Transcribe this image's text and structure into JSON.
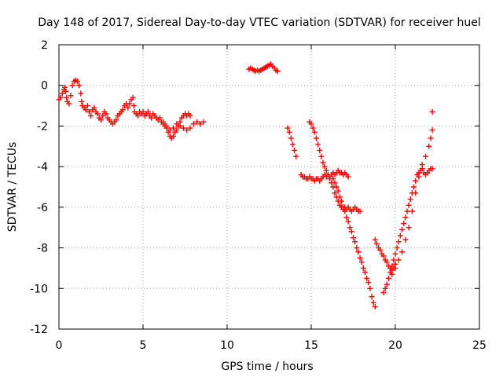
{
  "chart_data": {
    "type": "scatter",
    "title": "Day 148 of 2017, Sidereal Day-to-day VTEC variation (SDTVAR) for receiver huel",
    "xlabel": "GPS time / hours",
    "ylabel": "SDTVAR / TECUs",
    "xlim": [
      0,
      25
    ],
    "ylim": [
      -12,
      2
    ],
    "x_ticks": [
      0,
      5,
      10,
      15,
      20,
      25
    ],
    "x_tick_labels": [
      "0",
      "5",
      "10",
      "15",
      "20",
      "25"
    ],
    "y_ticks": [
      2,
      0,
      -2,
      -4,
      -6,
      -8,
      -10,
      -12
    ],
    "y_tick_labels": [
      "2",
      "0",
      "-2",
      "-4",
      "-6",
      "-8",
      "-10",
      "-12"
    ],
    "grid": true,
    "marker": "plus",
    "color": "#ff0000",
    "series": [
      {
        "values": [
          [
            0.0,
            -0.7
          ],
          [
            0.1,
            -0.6
          ],
          [
            0.2,
            -0.4
          ],
          [
            0.3,
            -0.2
          ],
          [
            0.35,
            -0.1
          ],
          [
            0.4,
            -0.3
          ],
          [
            0.45,
            -0.6
          ],
          [
            0.5,
            -0.8
          ],
          [
            0.6,
            -0.9
          ],
          [
            0.7,
            -0.5
          ],
          [
            0.8,
            0.0
          ],
          [
            0.9,
            0.2
          ],
          [
            1.0,
            0.25
          ],
          [
            1.1,
            0.2
          ],
          [
            1.2,
            0.0
          ],
          [
            1.3,
            -0.4
          ],
          [
            1.35,
            -0.8
          ],
          [
            1.4,
            -1.0
          ],
          [
            1.5,
            -1.1
          ],
          [
            1.6,
            -1.2
          ],
          [
            1.7,
            -1.0
          ],
          [
            1.8,
            -1.3
          ],
          [
            1.9,
            -1.5
          ],
          [
            2.0,
            -1.2
          ],
          [
            2.1,
            -1.1
          ],
          [
            2.2,
            -1.3
          ],
          [
            2.3,
            -1.4
          ],
          [
            2.4,
            -1.6
          ],
          [
            2.5,
            -1.7
          ],
          [
            2.6,
            -1.5
          ],
          [
            2.7,
            -1.3
          ],
          [
            2.8,
            -1.4
          ],
          [
            2.9,
            -1.6
          ],
          [
            3.0,
            -1.7
          ],
          [
            3.1,
            -1.8
          ],
          [
            3.2,
            -1.9
          ],
          [
            3.3,
            -1.8
          ],
          [
            3.4,
            -1.7
          ],
          [
            3.5,
            -1.5
          ],
          [
            3.6,
            -1.4
          ],
          [
            3.7,
            -1.3
          ],
          [
            3.8,
            -1.2
          ],
          [
            3.9,
            -1.0
          ],
          [
            4.0,
            -0.9
          ],
          [
            4.1,
            -1.1
          ],
          [
            4.2,
            -0.9
          ],
          [
            4.3,
            -0.7
          ],
          [
            4.4,
            -0.6
          ],
          [
            4.45,
            -1.0
          ],
          [
            4.5,
            -1.3
          ],
          [
            4.6,
            -1.4
          ],
          [
            4.7,
            -1.5
          ],
          [
            4.8,
            -1.3
          ],
          [
            4.9,
            -1.4
          ],
          [
            5.0,
            -1.3
          ],
          [
            5.1,
            -1.5
          ],
          [
            5.2,
            -1.4
          ],
          [
            5.3,
            -1.3
          ],
          [
            5.4,
            -1.5
          ],
          [
            5.5,
            -1.6
          ],
          [
            5.6,
            -1.4
          ],
          [
            5.7,
            -1.5
          ],
          [
            5.8,
            -1.6
          ],
          [
            5.9,
            -1.7
          ],
          [
            6.0,
            -1.6
          ],
          [
            6.1,
            -1.8
          ],
          [
            6.2,
            -1.9
          ],
          [
            6.3,
            -2.0
          ],
          [
            6.4,
            -2.1
          ],
          [
            6.5,
            -2.3
          ],
          [
            6.6,
            -2.5
          ],
          [
            6.7,
            -2.6
          ],
          [
            6.8,
            -2.5
          ],
          [
            6.9,
            -2.3
          ],
          [
            7.0,
            -2.2
          ],
          [
            7.1,
            -2.0
          ],
          [
            7.2,
            -1.8
          ],
          [
            7.3,
            -1.6
          ],
          [
            7.4,
            -1.5
          ],
          [
            7.5,
            -1.4
          ],
          [
            7.6,
            -1.5
          ],
          [
            7.7,
            -1.4
          ],
          [
            7.8,
            -1.5
          ],
          [
            6.2,
            -1.8
          ],
          [
            6.4,
            -2.0
          ],
          [
            6.6,
            -2.2
          ],
          [
            6.8,
            -2.1
          ],
          [
            7.0,
            -1.9
          ],
          [
            7.2,
            -2.0
          ],
          [
            7.4,
            -2.1
          ],
          [
            7.6,
            -2.2
          ],
          [
            7.8,
            -2.1
          ],
          [
            8.0,
            -1.9
          ],
          [
            8.2,
            -1.8
          ],
          [
            8.4,
            -1.9
          ],
          [
            8.6,
            -1.8
          ]
        ]
      },
      {
        "values": [
          [
            11.3,
            0.8
          ],
          [
            11.4,
            0.85
          ],
          [
            11.5,
            0.8
          ],
          [
            11.6,
            0.75
          ],
          [
            11.7,
            0.7
          ],
          [
            11.8,
            0.75
          ],
          [
            11.9,
            0.7
          ],
          [
            12.0,
            0.75
          ],
          [
            12.1,
            0.8
          ],
          [
            12.2,
            0.85
          ],
          [
            12.3,
            0.9
          ],
          [
            12.4,
            0.95
          ],
          [
            12.5,
            1.0
          ],
          [
            12.6,
            1.05
          ],
          [
            12.7,
            0.95
          ],
          [
            12.8,
            0.85
          ],
          [
            12.9,
            0.75
          ],
          [
            13.0,
            0.7
          ]
        ]
      },
      {
        "values": [
          [
            13.6,
            -2.1
          ],
          [
            13.7,
            -2.3
          ],
          [
            13.8,
            -2.6
          ],
          [
            13.9,
            -2.9
          ],
          [
            14.0,
            -3.2
          ],
          [
            14.1,
            -3.5
          ]
        ]
      },
      {
        "values": [
          [
            14.4,
            -4.4
          ],
          [
            14.5,
            -4.5
          ],
          [
            14.6,
            -4.5
          ],
          [
            14.7,
            -4.6
          ],
          [
            14.8,
            -4.6
          ],
          [
            14.9,
            -4.5
          ],
          [
            15.0,
            -4.6
          ],
          [
            15.1,
            -4.6
          ],
          [
            15.2,
            -4.7
          ],
          [
            15.3,
            -4.6
          ],
          [
            15.4,
            -4.6
          ],
          [
            15.5,
            -4.7
          ],
          [
            15.6,
            -4.6
          ],
          [
            15.7,
            -4.5
          ],
          [
            15.8,
            -4.4
          ],
          [
            15.9,
            -4.5
          ],
          [
            16.0,
            -4.4
          ],
          [
            16.1,
            -4.5
          ],
          [
            16.2,
            -4.4
          ],
          [
            16.3,
            -4.3
          ],
          [
            16.4,
            -4.4
          ],
          [
            16.5,
            -4.3
          ],
          [
            16.6,
            -4.2
          ],
          [
            16.7,
            -4.3
          ],
          [
            16.8,
            -4.3
          ],
          [
            16.9,
            -4.4
          ],
          [
            17.0,
            -4.3
          ],
          [
            17.1,
            -4.4
          ],
          [
            17.2,
            -4.5
          ]
        ]
      },
      {
        "values": [
          [
            14.9,
            -1.8
          ],
          [
            15.0,
            -1.9
          ],
          [
            15.1,
            -2.1
          ],
          [
            15.2,
            -2.3
          ],
          [
            15.3,
            -2.6
          ],
          [
            15.4,
            -2.9
          ],
          [
            15.5,
            -3.2
          ],
          [
            15.6,
            -3.5
          ],
          [
            15.7,
            -3.8
          ],
          [
            15.8,
            -4.0
          ],
          [
            15.9,
            -4.2
          ],
          [
            16.0,
            -4.4
          ],
          [
            16.1,
            -4.6
          ],
          [
            16.2,
            -4.8
          ],
          [
            16.3,
            -5.0
          ],
          [
            16.4,
            -5.3
          ],
          [
            16.5,
            -5.5
          ],
          [
            16.6,
            -5.7
          ],
          [
            16.7,
            -5.9
          ],
          [
            16.8,
            -6.0
          ],
          [
            16.9,
            -6.1
          ],
          [
            17.0,
            -6.0
          ],
          [
            17.1,
            -6.1
          ],
          [
            17.2,
            -6.0
          ],
          [
            17.3,
            -6.1
          ],
          [
            17.4,
            -6.2
          ],
          [
            17.5,
            -6.1
          ],
          [
            17.6,
            -6.0
          ],
          [
            17.7,
            -6.1
          ],
          [
            17.8,
            -6.2
          ],
          [
            17.9,
            -6.2
          ]
        ]
      },
      {
        "values": [
          [
            16.3,
            -4.6
          ],
          [
            16.5,
            -5.0
          ],
          [
            16.7,
            -5.5
          ],
          [
            16.9,
            -6.0
          ],
          [
            17.1,
            -6.5
          ],
          [
            17.3,
            -7.0
          ],
          [
            17.5,
            -7.5
          ],
          [
            17.7,
            -8.0
          ],
          [
            17.9,
            -8.5
          ],
          [
            18.1,
            -9.0
          ],
          [
            18.3,
            -9.5
          ],
          [
            18.5,
            -10.0
          ],
          [
            18.6,
            -10.4
          ],
          [
            18.7,
            -10.7
          ],
          [
            18.8,
            -10.9
          ],
          [
            16.4,
            -4.8
          ],
          [
            16.6,
            -5.2
          ],
          [
            16.8,
            -5.7
          ],
          [
            17.0,
            -6.2
          ],
          [
            17.2,
            -6.7
          ],
          [
            17.4,
            -7.2
          ],
          [
            17.6,
            -7.7
          ],
          [
            17.8,
            -8.2
          ],
          [
            18.0,
            -8.7
          ],
          [
            18.2,
            -9.2
          ],
          [
            18.4,
            -9.7
          ]
        ]
      },
      {
        "values": [
          [
            18.8,
            -7.6
          ],
          [
            18.9,
            -7.8
          ],
          [
            19.0,
            -8.0
          ],
          [
            19.1,
            -8.1
          ],
          [
            19.2,
            -8.3
          ],
          [
            19.3,
            -8.4
          ],
          [
            19.4,
            -8.6
          ],
          [
            19.5,
            -8.7
          ],
          [
            19.6,
            -8.9
          ],
          [
            19.7,
            -9.0
          ],
          [
            19.8,
            -9.1
          ],
          [
            19.9,
            -9.0
          ],
          [
            20.0,
            -8.8
          ]
        ]
      },
      {
        "values": [
          [
            19.3,
            -10.2
          ],
          [
            19.4,
            -10.0
          ],
          [
            19.5,
            -9.8
          ],
          [
            19.6,
            -9.5
          ],
          [
            19.7,
            -9.2
          ],
          [
            19.8,
            -8.9
          ],
          [
            19.9,
            -8.6
          ],
          [
            20.0,
            -8.3
          ],
          [
            20.1,
            -8.0
          ],
          [
            20.2,
            -7.7
          ],
          [
            20.3,
            -7.4
          ],
          [
            20.4,
            -7.1
          ],
          [
            20.5,
            -6.8
          ],
          [
            20.6,
            -6.5
          ],
          [
            20.7,
            -6.2
          ],
          [
            20.8,
            -5.9
          ],
          [
            20.9,
            -5.6
          ],
          [
            21.0,
            -5.3
          ],
          [
            21.1,
            -5.0
          ],
          [
            21.2,
            -4.7
          ],
          [
            21.3,
            -4.4
          ],
          [
            21.4,
            -4.3
          ],
          [
            21.5,
            -4.2
          ],
          [
            21.6,
            -4.1
          ],
          [
            21.7,
            -4.3
          ],
          [
            21.8,
            -4.4
          ],
          [
            21.9,
            -4.3
          ],
          [
            22.0,
            -4.2
          ],
          [
            22.1,
            -4.1
          ],
          [
            22.2,
            -4.1
          ],
          [
            19.8,
            -9.3
          ],
          [
            20.0,
            -9.0
          ],
          [
            20.2,
            -8.6
          ],
          [
            20.4,
            -8.2
          ],
          [
            20.6,
            -7.6
          ],
          [
            20.8,
            -7.0
          ],
          [
            21.0,
            -6.2
          ],
          [
            21.2,
            -5.3
          ],
          [
            21.4,
            -4.5
          ],
          [
            21.6,
            -3.9
          ],
          [
            21.8,
            -3.5
          ],
          [
            22.0,
            -3.0
          ],
          [
            22.1,
            -2.6
          ],
          [
            22.2,
            -2.2
          ],
          [
            22.2,
            -1.3
          ]
        ]
      }
    ]
  }
}
